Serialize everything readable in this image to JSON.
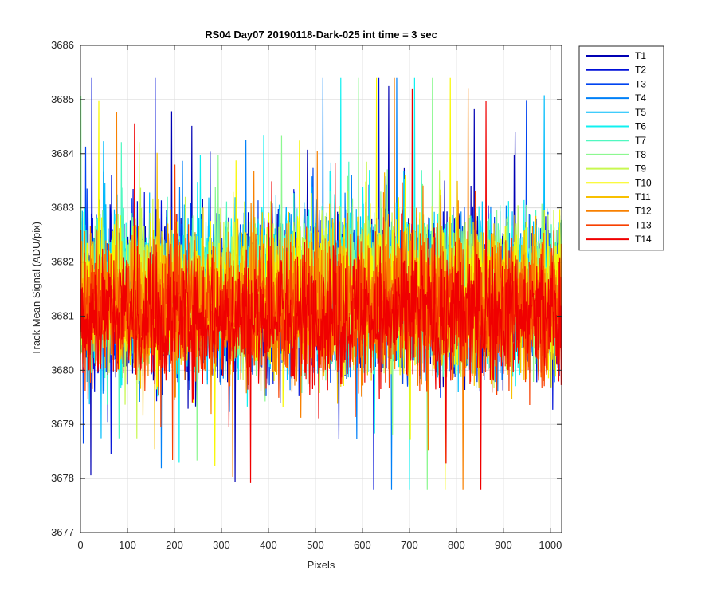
{
  "chart_data": {
    "type": "line",
    "title": "RS04 Day07 20190118-Dark-025 int time = 3 sec",
    "xlabel": "Pixels",
    "ylabel": "Track Mean Signal (ADU/pix)",
    "xlim": [
      0,
      1024
    ],
    "ylim": [
      3677,
      3686
    ],
    "xticks": [
      0,
      100,
      200,
      300,
      400,
      500,
      600,
      700,
      800,
      900,
      1000
    ],
    "yticks": [
      3677,
      3678,
      3679,
      3680,
      3681,
      3682,
      3683,
      3684,
      3685,
      3686
    ],
    "grid": true,
    "legend_position": "outside-top-right",
    "n_points": 1024,
    "series": [
      {
        "name": "T1",
        "color": "#0000b4",
        "mean": 3681.4,
        "std": 1.15
      },
      {
        "name": "T2",
        "color": "#0010d8",
        "mean": 3681.4,
        "std": 1.15
      },
      {
        "name": "T3",
        "color": "#0044f0",
        "mean": 3681.4,
        "std": 1.15
      },
      {
        "name": "T4",
        "color": "#0080f8",
        "mean": 3681.4,
        "std": 1.15
      },
      {
        "name": "T5",
        "color": "#00bcfc",
        "mean": 3681.5,
        "std": 1.15
      },
      {
        "name": "T6",
        "color": "#10f0f0",
        "mean": 3681.5,
        "std": 1.15
      },
      {
        "name": "T7",
        "color": "#50f8c0",
        "mean": 3681.5,
        "std": 1.1
      },
      {
        "name": "T8",
        "color": "#8cf890",
        "mean": 3681.5,
        "std": 1.1
      },
      {
        "name": "T9",
        "color": "#c8f850",
        "mean": 3681.5,
        "std": 1.1
      },
      {
        "name": "T10",
        "color": "#f8f800",
        "mean": 3681.4,
        "std": 1.1
      },
      {
        "name": "T11",
        "color": "#f8c000",
        "mean": 3681.3,
        "std": 1.1
      },
      {
        "name": "T12",
        "color": "#f88000",
        "mean": 3681.2,
        "std": 1.1
      },
      {
        "name": "T13",
        "color": "#f84000",
        "mean": 3681.1,
        "std": 1.05
      },
      {
        "name": "T14",
        "color": "#f00000",
        "mean": 3681.0,
        "std": 1.0
      }
    ]
  }
}
